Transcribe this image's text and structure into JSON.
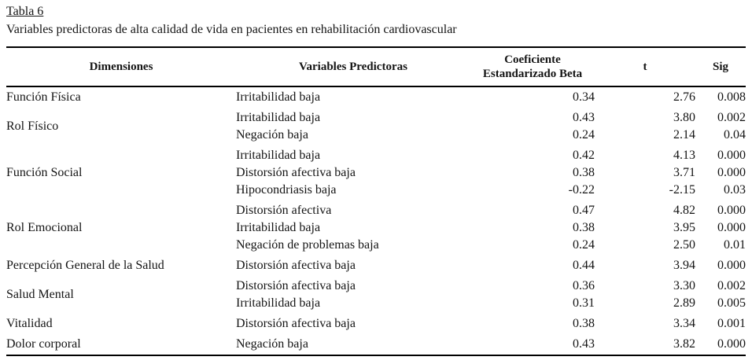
{
  "document": {
    "table_label": "Tabla 6",
    "caption": "Variables predictoras de alta calidad de vida en pacientes en rehabilitación cardiovascular",
    "colors": {
      "ink": "#141414",
      "background": "#ffffff",
      "rule": "#000000"
    }
  },
  "table": {
    "headers": [
      "Dimensiones",
      "Variables Predictoras",
      "Coeficiente Estandarizado Beta",
      "t",
      "Sig"
    ],
    "rows": [
      {
        "dimension": "Función Física",
        "predictors": [
          {
            "name": "Irritabilidad baja",
            "beta": "0.34",
            "t": "2.76",
            "sig": "0.008"
          }
        ]
      },
      {
        "dimension": "Rol Físico",
        "predictors": [
          {
            "name": "Irritabilidad baja",
            "beta": "0.43",
            "t": "3.80",
            "sig": "0.002"
          },
          {
            "name": "Negación baja",
            "beta": "0.24",
            "t": "2.14",
            "sig": "0.04"
          }
        ]
      },
      {
        "dimension": "Función Social",
        "predictors": [
          {
            "name": "Irritabilidad baja",
            "beta": "0.42",
            "t": "4.13",
            "sig": "0.000"
          },
          {
            "name": "Distorsión afectiva baja",
            "beta": "0.38",
            "t": "3.71",
            "sig": "0.000"
          },
          {
            "name": "Hipocondriasis baja",
            "beta": "-0.22",
            "t": "-2.15",
            "sig": "0.03"
          }
        ]
      },
      {
        "dimension": "Rol Emocional",
        "predictors": [
          {
            "name": "Distorsión afectiva",
            "beta": "0.47",
            "t": "4.82",
            "sig": "0.000"
          },
          {
            "name": "Irritabilidad baja",
            "beta": "0.38",
            "t": "3.95",
            "sig": "0.000"
          },
          {
            "name": "Negación de problemas baja",
            "beta": "0.24",
            "t": "2.50",
            "sig": "0.01"
          }
        ]
      },
      {
        "dimension": "Percepción General de la Salud",
        "predictors": [
          {
            "name": "Distorsión afectiva baja",
            "beta": "0.44",
            "t": "3.94",
            "sig": "0.000"
          }
        ]
      },
      {
        "dimension": "Salud Mental",
        "predictors": [
          {
            "name": "Distorsión afectiva baja",
            "beta": "0.36",
            "t": "3.30",
            "sig": "0.002"
          },
          {
            "name": "Irritabilidad baja",
            "beta": "0.31",
            "t": "2.89",
            "sig": "0.005"
          }
        ]
      },
      {
        "dimension": "Vitalidad",
        "predictors": [
          {
            "name": "Distorsión afectiva baja",
            "beta": "0.38",
            "t": "3.34",
            "sig": "0.001"
          }
        ]
      },
      {
        "dimension": "Dolor corporal",
        "predictors": [
          {
            "name": "Negación baja",
            "beta": "0.43",
            "t": "3.82",
            "sig": "0.000"
          }
        ]
      }
    ]
  }
}
